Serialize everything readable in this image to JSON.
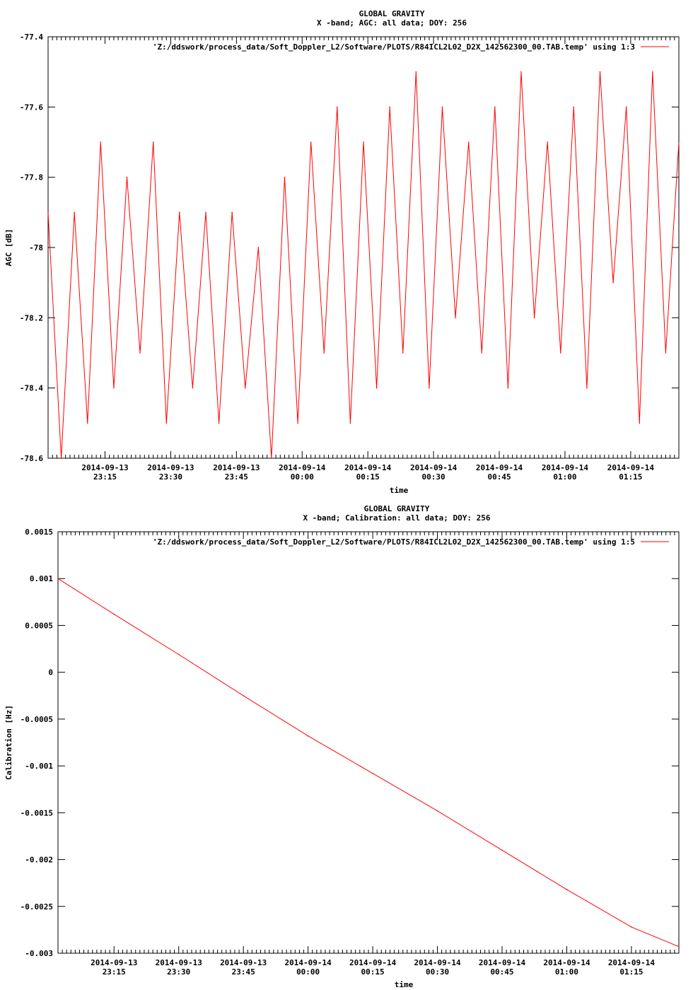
{
  "chart_data": [
    {
      "type": "line",
      "title": "GLOBAL GRAVITY",
      "subtitle": "X -band; AGC: all data; DOY: 256",
      "xlabel": "time",
      "ylabel": "AGC [dB]",
      "legend": "'Z:/ddswork/process_data/Soft_Doppler_L2/Software/PLOTS/R84ICL2L02_D2X_142562300_00.TAB.temp' using 1:3",
      "legend_position": "top-right",
      "color": "#ff0000",
      "grid": false,
      "xlim": [
        "2014-09-13 23:02",
        "2014-09-14 01:26"
      ],
      "ylim": [
        -78.6,
        -77.4
      ],
      "y_ticks": [
        -77.4,
        -77.6,
        -77.8,
        -78,
        -78.2,
        -78.4,
        -78.6
      ],
      "y_tick_labels": [
        "-77.4",
        "-77.6",
        "-77.8",
        "-78",
        "-78.2",
        "-78.4",
        "-78.6"
      ],
      "x_ticks": [
        "2014-09-13 23:15",
        "2014-09-13 23:30",
        "2014-09-13 23:45",
        "2014-09-14 00:00",
        "2014-09-14 00:15",
        "2014-09-14 00:30",
        "2014-09-14 00:45",
        "2014-09-14 01:00",
        "2014-09-14 01:15"
      ],
      "x_tick_labels": [
        {
          "date": "2014-09-13",
          "time": "23:15"
        },
        {
          "date": "2014-09-13",
          "time": "23:30"
        },
        {
          "date": "2014-09-13",
          "time": "23:45"
        },
        {
          "date": "2014-09-14",
          "time": "00:00"
        },
        {
          "date": "2014-09-14",
          "time": "00:15"
        },
        {
          "date": "2014-09-14",
          "time": "00:30"
        },
        {
          "date": "2014-09-14",
          "time": "00:45"
        },
        {
          "date": "2014-09-14",
          "time": "01:00"
        },
        {
          "date": "2014-09-14",
          "time": "01:15"
        }
      ],
      "x": [
        "2014-09-13 23:02",
        "2014-09-13 23:05",
        "2014-09-13 23:08",
        "2014-09-13 23:11",
        "2014-09-13 23:14",
        "2014-09-13 23:17",
        "2014-09-13 23:20",
        "2014-09-13 23:23",
        "2014-09-13 23:26",
        "2014-09-13 23:29",
        "2014-09-13 23:32",
        "2014-09-13 23:35",
        "2014-09-13 23:38",
        "2014-09-13 23:41",
        "2014-09-13 23:44",
        "2014-09-13 23:47",
        "2014-09-13 23:50",
        "2014-09-13 23:53",
        "2014-09-13 23:56",
        "2014-09-13 23:59",
        "2014-09-14 00:02",
        "2014-09-14 00:05",
        "2014-09-14 00:08",
        "2014-09-14 00:11",
        "2014-09-14 00:14",
        "2014-09-14 00:17",
        "2014-09-14 00:20",
        "2014-09-14 00:23",
        "2014-09-14 00:26",
        "2014-09-14 00:29",
        "2014-09-14 00:32",
        "2014-09-14 00:35",
        "2014-09-14 00:38",
        "2014-09-14 00:41",
        "2014-09-14 00:44",
        "2014-09-14 00:47",
        "2014-09-14 00:50",
        "2014-09-14 00:53",
        "2014-09-14 00:56",
        "2014-09-14 00:59",
        "2014-09-14 01:02",
        "2014-09-14 01:05",
        "2014-09-14 01:08",
        "2014-09-14 01:11",
        "2014-09-14 01:14",
        "2014-09-14 01:17",
        "2014-09-14 01:20",
        "2014-09-14 01:23",
        "2014-09-14 01:26"
      ],
      "series": [
        {
          "values": [
            -77.9,
            -78.6,
            -77.9,
            -78.5,
            -77.7,
            -78.4,
            -77.8,
            -78.3,
            -77.7,
            -78.5,
            -77.9,
            -78.4,
            -77.9,
            -78.5,
            -77.9,
            -78.4,
            -78.0,
            -78.6,
            -77.8,
            -78.5,
            -77.7,
            -78.3,
            -77.6,
            -78.5,
            -77.7,
            -78.4,
            -77.6,
            -78.3,
            -77.5,
            -78.4,
            -77.6,
            -78.2,
            -77.7,
            -78.3,
            -77.6,
            -78.4,
            -77.5,
            -78.2,
            -77.7,
            -78.3,
            -77.6,
            -78.4,
            -77.5,
            -78.1,
            -77.6,
            -78.5,
            -77.5,
            -78.3,
            -77.7
          ]
        }
      ]
    },
    {
      "type": "line",
      "title": "GLOBAL GRAVITY",
      "subtitle": "X -band; Calibration: all data; DOY: 256",
      "xlabel": "time",
      "ylabel": "Calibration [Hz]",
      "legend": "'Z:/ddswork/process_data/Soft_Doppler_L2/Software/PLOTS/R84ICL2L02_D2X_142562300_00.TAB.temp' using 1:5",
      "legend_position": "top-right",
      "color": "#ff0000",
      "grid": false,
      "xlim": [
        "2014-09-13 23:02",
        "2014-09-14 01:26"
      ],
      "ylim": [
        -0.003,
        0.0015
      ],
      "y_ticks": [
        0.0015,
        0.001,
        0.0005,
        0,
        -0.0005,
        -0.001,
        -0.0015,
        -0.002,
        -0.0025,
        -0.003
      ],
      "y_tick_labels": [
        "0.0015",
        "0.001",
        "0.0005",
        "0",
        "-0.0005",
        "-0.001",
        "-0.0015",
        "-0.002",
        "-0.0025",
        "-0.003"
      ],
      "x_ticks": [
        "2014-09-13 23:15",
        "2014-09-13 23:30",
        "2014-09-13 23:45",
        "2014-09-14 00:00",
        "2014-09-14 00:15",
        "2014-09-14 00:30",
        "2014-09-14 00:45",
        "2014-09-14 01:00",
        "2014-09-14 01:15"
      ],
      "x_tick_labels": [
        {
          "date": "2014-09-13",
          "time": "23:15"
        },
        {
          "date": "2014-09-13",
          "time": "23:30"
        },
        {
          "date": "2014-09-13",
          "time": "23:45"
        },
        {
          "date": "2014-09-14",
          "time": "00:00"
        },
        {
          "date": "2014-09-14",
          "time": "00:15"
        },
        {
          "date": "2014-09-14",
          "time": "00:30"
        },
        {
          "date": "2014-09-14",
          "time": "00:45"
        },
        {
          "date": "2014-09-14",
          "time": "01:00"
        },
        {
          "date": "2014-09-14",
          "time": "01:15"
        }
      ],
      "x": [
        "2014-09-13 23:02",
        "2014-09-13 23:15",
        "2014-09-13 23:30",
        "2014-09-13 23:45",
        "2014-09-14 00:00",
        "2014-09-14 00:15",
        "2014-09-14 00:30",
        "2014-09-14 00:45",
        "2014-09-14 01:00",
        "2014-09-14 01:15",
        "2014-09-14 01:26"
      ],
      "series": [
        {
          "values": [
            0.001,
            0.00062,
            0.00019,
            -0.00025,
            -0.00068,
            -0.00108,
            -0.00148,
            -0.0019,
            -0.00232,
            -0.00272,
            -0.00293
          ]
        }
      ]
    }
  ]
}
